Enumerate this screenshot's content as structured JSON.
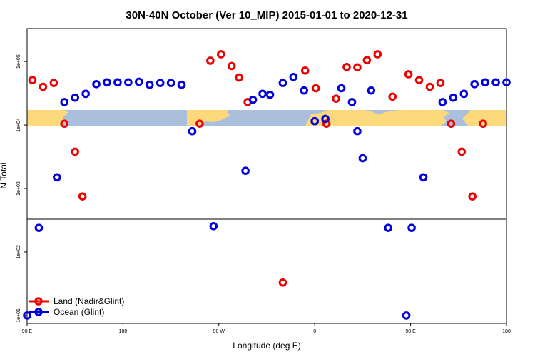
{
  "chart_data": {
    "type": "scatter",
    "title": "30N-40N October (Ver 10_MIP)   2015-01-01 to 2020-12-31",
    "xlabel": "Longitude (deg E)",
    "ylabel": "N Total",
    "x_ticks": [
      {
        "value": 90,
        "label": "90 E"
      },
      {
        "value": 180,
        "label": "180"
      },
      {
        "value": 270,
        "label": "90 W"
      },
      {
        "value": 360,
        "label": "0"
      },
      {
        "value": 450,
        "label": "90 E"
      },
      {
        "value": 540,
        "label": "180"
      }
    ],
    "y_ticks": [
      {
        "value": 10,
        "label": "1e+01"
      },
      {
        "value": 100,
        "label": "1e+02"
      },
      {
        "value": 1000,
        "label": "1e+03"
      },
      {
        "value": 10000,
        "label": "1e+04"
      },
      {
        "value": 100000,
        "label": "1e+05"
      }
    ],
    "xlim": [
      90,
      540
    ],
    "ylim": [
      7.5,
      330000
    ],
    "y_scale": "log",
    "grid": false,
    "legend_position": "bottom-left",
    "series": [
      {
        "name": "Land (Nadir&Glint)",
        "color": "#ee0000",
        "x": [
          95,
          105,
          115,
          125,
          135,
          142,
          252,
          262,
          272,
          282,
          289,
          297,
          330,
          351,
          361,
          371,
          380,
          390,
          400,
          409,
          419,
          433,
          448,
          458,
          468,
          478,
          488,
          498,
          508,
          518
        ],
        "y": [
          51000,
          40000,
          46000,
          10500,
          3800,
          750,
          10500,
          103000,
          130000,
          85000,
          56000,
          23000,
          33,
          72000,
          38000,
          10500,
          26000,
          82000,
          81000,
          105000,
          130000,
          28000,
          63000,
          51000,
          40000,
          46000,
          10500,
          3800,
          750,
          10500
        ]
      },
      {
        "name": "Ocean (Glint)",
        "color": "#0000dd",
        "x": [
          90,
          101,
          118,
          125,
          135,
          145,
          155,
          165,
          175,
          185,
          195,
          205,
          215,
          225,
          235,
          245,
          265,
          295,
          302,
          311,
          318,
          330,
          340,
          350,
          360,
          370,
          385,
          395,
          400,
          405,
          413,
          429,
          446,
          451,
          462,
          480,
          490,
          500,
          510,
          520,
          530,
          540
        ],
        "y": [
          10,
          240,
          1500,
          23000,
          27000,
          31000,
          44000,
          47000,
          47000,
          47000,
          48000,
          43000,
          46000,
          46000,
          43000,
          8000,
          255,
          1900,
          25000,
          31000,
          30000,
          46000,
          57000,
          35000,
          11500,
          12500,
          38000,
          23000,
          8000,
          3000,
          35000,
          240,
          10,
          240,
          1500,
          23000,
          27000,
          31000,
          44000,
          47000,
          47000,
          47000
        ]
      }
    ]
  }
}
